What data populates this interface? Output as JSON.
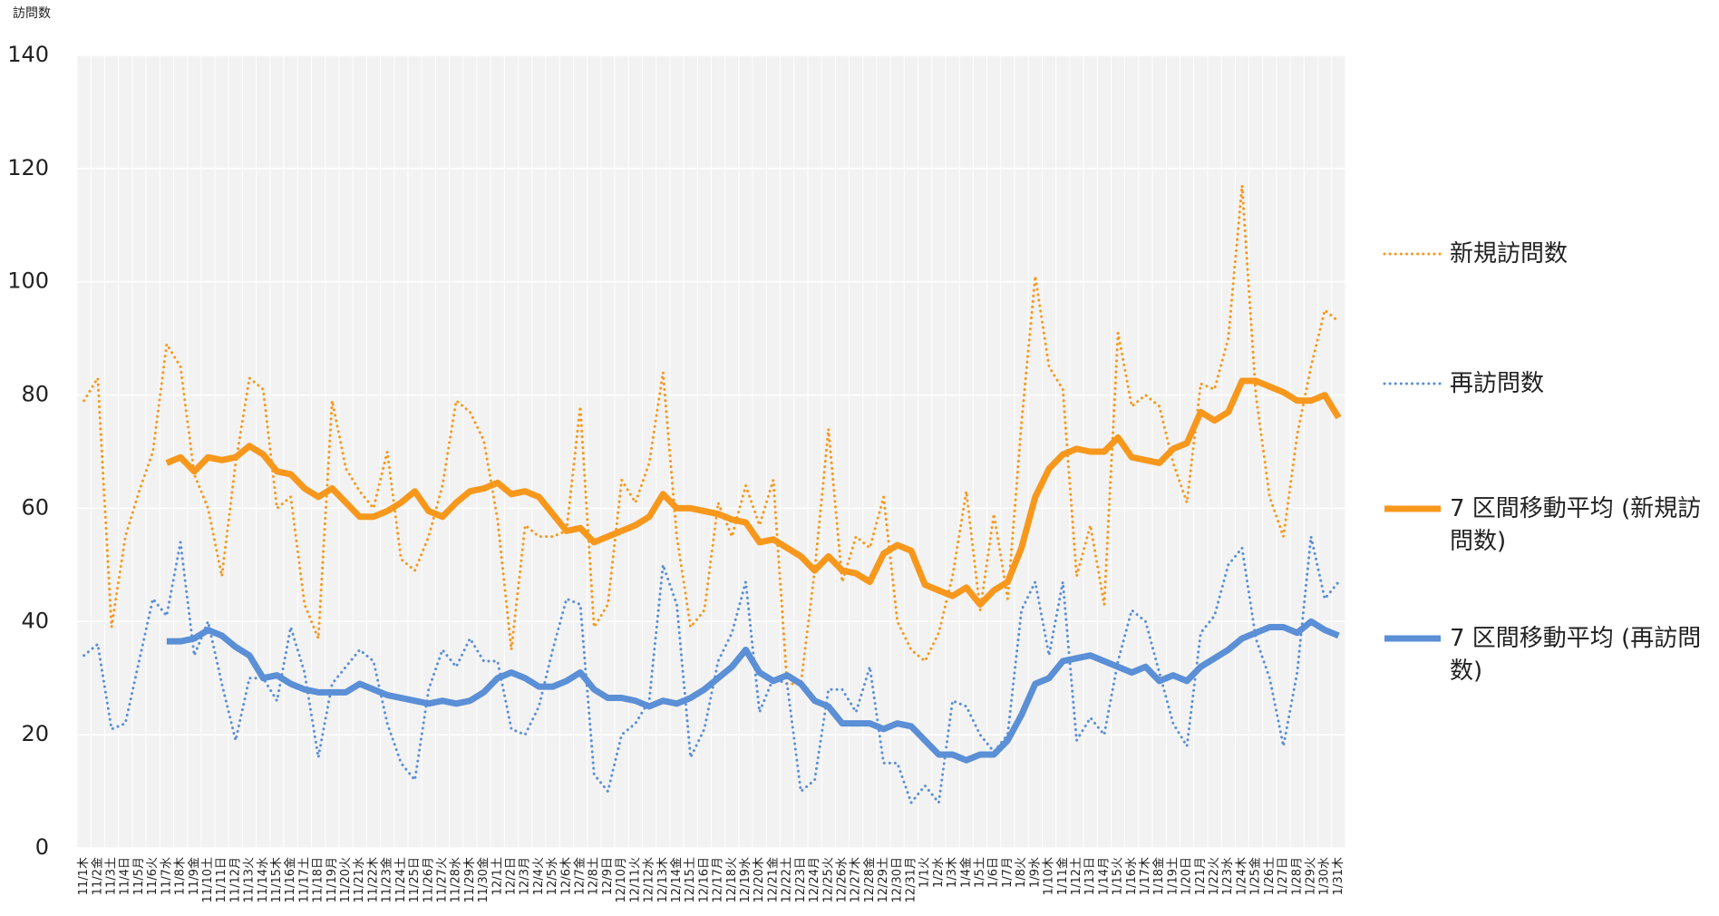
{
  "chart_data": {
    "type": "line",
    "y_label": "訪問数",
    "categories": [
      "11/1木",
      "11/2金",
      "11/3土",
      "11/4日",
      "11/5月",
      "11/6火",
      "11/7水",
      "11/8木",
      "11/9金",
      "11/10土",
      "11/11日",
      "11/12月",
      "11/13火",
      "11/14水",
      "11/15木",
      "11/16金",
      "11/17土",
      "11/18日",
      "11/19月",
      "11/20火",
      "11/21水",
      "11/22木",
      "11/23金",
      "11/24土",
      "11/25日",
      "11/26月",
      "11/27火",
      "11/28水",
      "11/29木",
      "11/30金",
      "12/1土",
      "12/2日",
      "12/3月",
      "12/4火",
      "12/5水",
      "12/6木",
      "12/7金",
      "12/8土",
      "12/9日",
      "12/10月",
      "12/11火",
      "12/12水",
      "12/13木",
      "12/14金",
      "12/15土",
      "12/16日",
      "12/17月",
      "12/18火",
      "12/19水",
      "12/20木",
      "12/21金",
      "12/22土",
      "12/23日",
      "12/24月",
      "12/25火",
      "12/26水",
      "12/27木",
      "12/28金",
      "12/29土",
      "12/30日",
      "12/31月",
      "1/1火",
      "1/2水",
      "1/3木",
      "1/4金",
      "1/5土",
      "1/6日",
      "1/7月",
      "1/8火",
      "1/9水",
      "1/10木",
      "1/11金",
      "1/12土",
      "1/13日",
      "1/14月",
      "1/15火",
      "1/16水",
      "1/17木",
      "1/18金",
      "1/19土",
      "1/20日",
      "1/21月",
      "1/22火",
      "1/23水",
      "1/24木",
      "1/25金",
      "1/26土",
      "1/27日",
      "1/28月",
      "1/29火",
      "1/30水",
      "1/31木"
    ],
    "series": [
      {
        "name": "新規訪問数",
        "color": "#f7981d",
        "style": "dotted",
        "width": 3,
        "values": [
          79,
          83,
          39,
          55,
          63,
          70,
          89,
          85,
          66,
          60,
          48,
          68,
          83,
          81,
          60,
          62,
          43,
          37,
          79,
          67,
          63,
          60,
          70,
          51,
          49,
          55,
          64,
          79,
          77,
          72,
          58,
          35,
          57,
          55,
          55,
          56,
          78,
          39,
          43,
          65,
          61,
          68,
          84,
          55,
          39,
          42,
          61,
          55,
          64,
          57,
          65,
          29,
          29,
          49,
          74,
          47,
          55,
          53,
          62,
          40,
          35,
          33,
          38,
          48,
          63,
          42,
          59,
          44,
          75,
          101,
          85,
          81,
          48,
          57,
          43,
          91,
          78,
          80,
          78,
          68,
          61,
          82,
          81,
          90,
          117,
          80,
          62,
          55,
          73,
          85,
          95,
          93
        ]
      },
      {
        "name": "再訪問数",
        "color": "#5b8fd6",
        "style": "dotted",
        "width": 3,
        "values": [
          34,
          36,
          21,
          22,
          33,
          44,
          41,
          54,
          34,
          40,
          29,
          19,
          30,
          30,
          26,
          39,
          31,
          16,
          29,
          32,
          35,
          33,
          22,
          15,
          12,
          28,
          35,
          32,
          37,
          33,
          33,
          21,
          20,
          25,
          35,
          44,
          43,
          13,
          10,
          20,
          22,
          26,
          50,
          43,
          16,
          21,
          33,
          38,
          47,
          24,
          30,
          29,
          10,
          12,
          28,
          28,
          24,
          32,
          15,
          15,
          8,
          11,
          8,
          26,
          25,
          20,
          17,
          20,
          42,
          47,
          34,
          47,
          19,
          23,
          20,
          33,
          42,
          40,
          31,
          22,
          18,
          38,
          41,
          50,
          53,
          37,
          30,
          18,
          31,
          55,
          44,
          47
        ]
      },
      {
        "name": "7 区間移動平均 (新規訪問数)",
        "color": "#f7981d",
        "style": "solid",
        "width": 7,
        "values": [
          null,
          null,
          null,
          null,
          null,
          null,
          68,
          69,
          66.5,
          69,
          68.5,
          69,
          71,
          69.5,
          66.5,
          66,
          63.5,
          62,
          63.5,
          61,
          58.5,
          58.5,
          59.5,
          61,
          63,
          59.5,
          58.5,
          61,
          63,
          63.5,
          64.5,
          62.5,
          63,
          62,
          59,
          56,
          56.5,
          54,
          55,
          56,
          57,
          58.5,
          62.5,
          60,
          60,
          59.5,
          59,
          58,
          57.5,
          54,
          54.5,
          53,
          51.5,
          49,
          51.5,
          49,
          48.5,
          47,
          52,
          53.5,
          52.5,
          46.5,
          45.5,
          44.5,
          46,
          43,
          45.5,
          47,
          53,
          62,
          67,
          69.5,
          70.5,
          70,
          70,
          72.5,
          69,
          68.5,
          68,
          70.5,
          71.5,
          77,
          75.5,
          77,
          82.5,
          82.5,
          81.5,
          80.5,
          79,
          79,
          80,
          76
        ]
      },
      {
        "name": "7 区間移動平均 (再訪問数)",
        "color": "#5b8fd6",
        "style": "solid",
        "width": 7,
        "values": [
          null,
          null,
          null,
          null,
          null,
          null,
          36.5,
          36.5,
          37,
          38.5,
          37.5,
          35.5,
          34,
          30,
          30.5,
          29,
          28,
          27.5,
          27.5,
          27.5,
          29,
          28,
          27,
          26.5,
          26,
          25.5,
          26,
          25.5,
          26,
          27.5,
          30,
          31,
          30,
          28.5,
          28.5,
          29.5,
          31,
          28,
          26.5,
          26.5,
          26,
          25,
          26,
          25.5,
          26.5,
          28,
          30,
          32,
          35,
          31,
          29.5,
          30.5,
          29,
          26,
          25,
          22,
          22,
          22,
          21,
          22,
          21.5,
          19,
          16.5,
          16.5,
          15.5,
          16.5,
          16.5,
          19,
          23.5,
          29,
          30,
          33,
          33.5,
          34,
          33,
          32,
          31,
          32,
          29.5,
          30.5,
          29.5,
          32,
          33.5,
          35,
          37,
          38,
          39,
          39,
          38,
          40,
          38.5,
          37.5
        ]
      }
    ],
    "ylim": [
      0,
      140
    ],
    "yticks": [
      0,
      20,
      40,
      60,
      80,
      100,
      120,
      140
    ],
    "grid": true,
    "legend": "right"
  }
}
